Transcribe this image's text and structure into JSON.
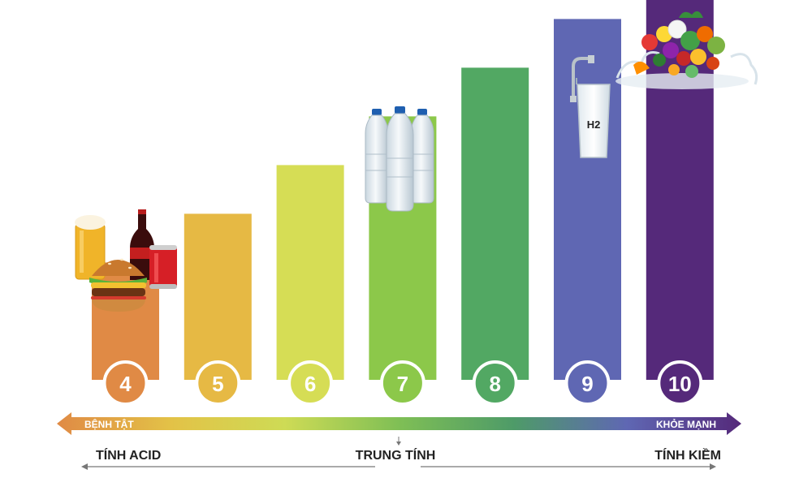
{
  "chart_data": {
    "type": "bar",
    "categories": [
      "4",
      "5",
      "6",
      "7",
      "8",
      "9",
      "10"
    ],
    "values": [
      4,
      5,
      6,
      7,
      8,
      9,
      10
    ],
    "colors": [
      "#E08A45",
      "#E6B944",
      "#D6DD55",
      "#8CC84A",
      "#52A863",
      "#5F67B3",
      "#55297A"
    ],
    "title": "",
    "xlabel": "",
    "ylabel": "",
    "grid": false,
    "legend": "none"
  },
  "gradient_axis": {
    "left_label": "BỆNH TẬT",
    "right_label": "KHỎE MẠNH",
    "colors": [
      "#E08A45",
      "#E3C247",
      "#CEDB55",
      "#7FBF55",
      "#4E9B68",
      "#5F67B3",
      "#55297A"
    ]
  },
  "scale": {
    "left_label": "TÍNH ACID",
    "center_label": "TRUNG TÍNH",
    "right_label": "TÍNH KIỀM"
  },
  "illustrations": {
    "bar_4": "junk-food-icon",
    "bar_7": "water-bottles-icon",
    "bar_9": "water-glass-icon",
    "bar_9_text": "H2",
    "bar_10": "vegetables-icon"
  }
}
